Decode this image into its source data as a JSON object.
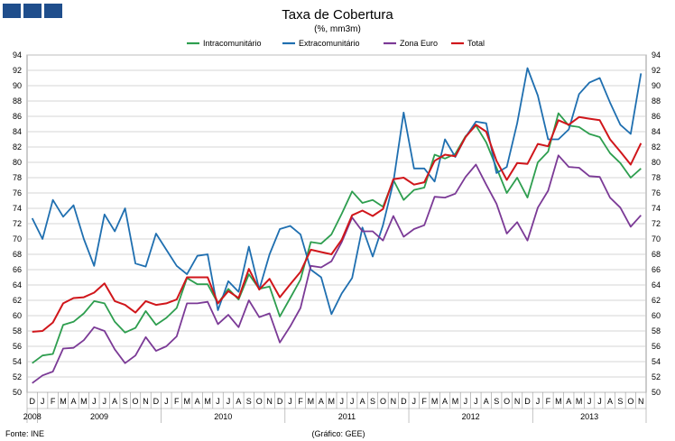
{
  "header": {
    "blocks": [
      "",
      "",
      ""
    ]
  },
  "chart_data": {
    "type": "line",
    "title": "Taxa de Cobertura",
    "subtitle": "(%, mm3m)",
    "ylim": [
      50,
      94
    ],
    "yticks": [
      50,
      52,
      54,
      56,
      58,
      60,
      62,
      64,
      66,
      68,
      70,
      72,
      74,
      76,
      78,
      80,
      82,
      84,
      86,
      88,
      90,
      92,
      94
    ],
    "grid": "horizontal",
    "legend_position": "top-center",
    "x": [
      "D",
      "J",
      "F",
      "M",
      "A",
      "M",
      "J",
      "J",
      "A",
      "S",
      "O",
      "N",
      "D",
      "J",
      "F",
      "M",
      "A",
      "M",
      "J",
      "J",
      "A",
      "S",
      "O",
      "N",
      "D",
      "J",
      "F",
      "M",
      "A",
      "M",
      "J",
      "J",
      "A",
      "S",
      "O",
      "N",
      "D",
      "J",
      "F",
      "M",
      "A",
      "M",
      "J",
      "J",
      "A",
      "S",
      "O",
      "N",
      "D",
      "J",
      "F",
      "M",
      "A",
      "M",
      "J",
      "J",
      "A",
      "S",
      "O",
      "N"
    ],
    "years": [
      {
        "label": "2008",
        "start": 0,
        "end": 0
      },
      {
        "label": "2009",
        "start": 1,
        "end": 12
      },
      {
        "label": "2010",
        "start": 13,
        "end": 24
      },
      {
        "label": "2011",
        "start": 25,
        "end": 36
      },
      {
        "label": "2012",
        "start": 37,
        "end": 48
      },
      {
        "label": "2013",
        "start": 49,
        "end": 59
      }
    ],
    "series": [
      {
        "name": "Intracomunitário",
        "color": "#2e9e4f",
        "values": [
          53.8,
          54.8,
          55.0,
          58.8,
          59.2,
          60.3,
          61.9,
          61.6,
          59.2,
          57.8,
          58.4,
          60.6,
          58.8,
          59.7,
          61.0,
          64.9,
          64.1,
          64.1,
          61.6,
          63.5,
          62.1,
          65.4,
          63.5,
          63.8,
          59.9,
          62.3,
          64.7,
          69.6,
          69.4,
          70.6,
          73.3,
          76.2,
          74.7,
          75.1,
          74.2,
          77.7,
          75.1,
          76.4,
          76.7,
          81.0,
          80.5,
          81.1,
          83.4,
          84.8,
          82.6,
          79.3,
          76.0,
          78.0,
          75.4,
          80.0,
          81.4,
          86.4,
          84.8,
          84.6,
          83.7,
          83.3,
          81.2,
          79.9,
          78.0,
          79.2
        ]
      },
      {
        "name": "Extracomunitário",
        "color": "#1f6fb0",
        "values": [
          72.7,
          70.0,
          75.1,
          72.9,
          74.4,
          70.0,
          66.5,
          73.2,
          71.0,
          74.0,
          66.8,
          66.4,
          70.7,
          68.6,
          66.5,
          65.4,
          67.8,
          68.0,
          60.7,
          64.5,
          63.1,
          69.0,
          63.4,
          68.0,
          71.3,
          71.7,
          70.6,
          66.0,
          65.0,
          60.2,
          62.9,
          64.9,
          71.5,
          67.7,
          71.8,
          77.4,
          86.5,
          79.2,
          79.2,
          77.5,
          83.0,
          80.7,
          83.3,
          85.3,
          85.1,
          78.6,
          79.4,
          85.1,
          92.3,
          88.7,
          83.0,
          83.0,
          84.3,
          88.9,
          90.4,
          91.0,
          87.8,
          84.9,
          83.7,
          91.6
        ]
      },
      {
        "name": "Zona Euro",
        "color": "#7b3a96",
        "values": [
          51.2,
          52.2,
          52.7,
          55.7,
          55.8,
          56.8,
          58.5,
          58.0,
          55.6,
          53.8,
          54.8,
          57.2,
          55.4,
          56.0,
          57.3,
          61.6,
          61.6,
          61.8,
          58.9,
          60.1,
          58.5,
          62.0,
          59.8,
          60.3,
          56.5,
          58.6,
          61.0,
          66.5,
          66.3,
          67.1,
          69.6,
          72.8,
          71.0,
          71.0,
          69.8,
          73.0,
          70.3,
          71.3,
          71.8,
          75.5,
          75.4,
          75.9,
          78.1,
          79.7,
          77.1,
          74.6,
          70.7,
          72.2,
          69.8,
          74.1,
          76.3,
          80.9,
          79.4,
          79.3,
          78.2,
          78.1,
          75.4,
          74.1,
          71.6,
          73.1
        ]
      },
      {
        "name": "Total",
        "color": "#d0161b",
        "values": [
          57.9,
          58.0,
          59.1,
          61.6,
          62.3,
          62.4,
          63.0,
          64.2,
          61.9,
          61.4,
          60.4,
          61.9,
          61.4,
          61.6,
          62.1,
          65.0,
          65.0,
          65.0,
          61.6,
          63.2,
          62.3,
          66.1,
          63.4,
          64.8,
          62.4,
          64.1,
          65.7,
          68.6,
          68.3,
          68.0,
          69.9,
          73.1,
          73.7,
          73.0,
          73.9,
          77.8,
          78.0,
          77.1,
          77.4,
          80.2,
          81.0,
          80.8,
          83.3,
          84.9,
          84.0,
          80.2,
          77.7,
          79.9,
          79.8,
          82.4,
          82.1,
          85.5,
          84.9,
          85.9,
          85.7,
          85.5,
          83.0,
          81.4,
          79.7,
          82.5
        ]
      }
    ]
  },
  "footer": {
    "source": "Fonte: INE",
    "credit": "(Gráfico: GEE)"
  }
}
